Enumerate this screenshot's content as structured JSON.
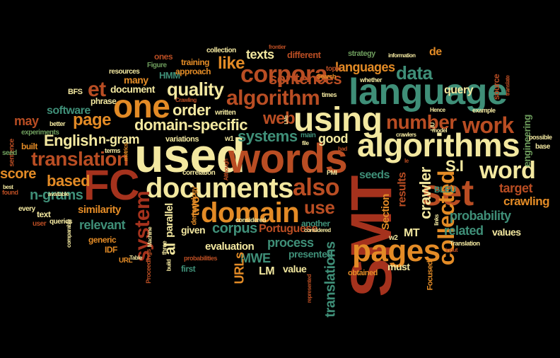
{
  "palette": {
    "cream": "#f3e8a0",
    "orange": "#e38b26",
    "rust": "#b94d23",
    "red": "#a5321d",
    "teal": "#3f8f78",
    "green": "#6d9c5c",
    "background": "#000000"
  },
  "words": [
    "used",
    "words",
    "SMT",
    "FC",
    "using",
    "language",
    "algorithms",
    "documents",
    "domain",
    "one",
    "set",
    "pages",
    "word",
    "corpora",
    "algorithm",
    "also",
    "data",
    "translation",
    "number",
    "work",
    "quality",
    "web",
    "collected",
    "crawler",
    "sentences",
    "system",
    "page",
    "domain-specific",
    "et",
    "languages",
    "like",
    "S.I",
    "English",
    "use",
    "systems",
    "based",
    "score",
    "n-grams",
    "al",
    "probability",
    "corpus",
    "good",
    "order",
    "MWE",
    "texts",
    "process",
    "translations",
    "target",
    "crawling",
    "related",
    "software",
    "n-gram",
    "may",
    "relevant",
    "similarity",
    "parallel",
    "evaluation",
    "LM",
    "URLs",
    "two",
    "Portuguese",
    "results",
    "Section",
    "presented",
    "seeds",
    "query",
    "MT",
    "value",
    "must",
    "values",
    "engineering",
    "given",
    "different",
    "strategy",
    "de",
    "document",
    "collection",
    "training",
    "ones",
    "HMM",
    "approach",
    "many",
    "resources",
    "Figure",
    "phrase",
    "BFS",
    "sentence",
    "seed",
    "experiments",
    "built",
    "best",
    "found",
    "every",
    "user",
    "text",
    "queries",
    "generic",
    "IDF",
    "URL",
    "Table",
    "Proceedings",
    "Machine",
    "three",
    "build",
    "probabilities",
    "first",
    "dermatology",
    "correlation",
    "considered",
    "w1",
    "w2",
    "Although",
    "PMI",
    "another",
    "represented",
    "obtained",
    "Focused",
    "input",
    "Translation",
    "BLEU",
    "LIU",
    "links",
    "topic",
    "Search",
    "times",
    "information",
    "whether",
    "frontier",
    "source",
    "translate",
    "example",
    "Hence",
    "model",
    "possible",
    "base",
    "crawlers",
    "file",
    "main",
    "bad",
    "LMs",
    "written",
    "Crawling",
    "better",
    "considered",
    "terms",
    "metrics",
    "variations",
    "available",
    "comparable",
    "le"
  ]
}
